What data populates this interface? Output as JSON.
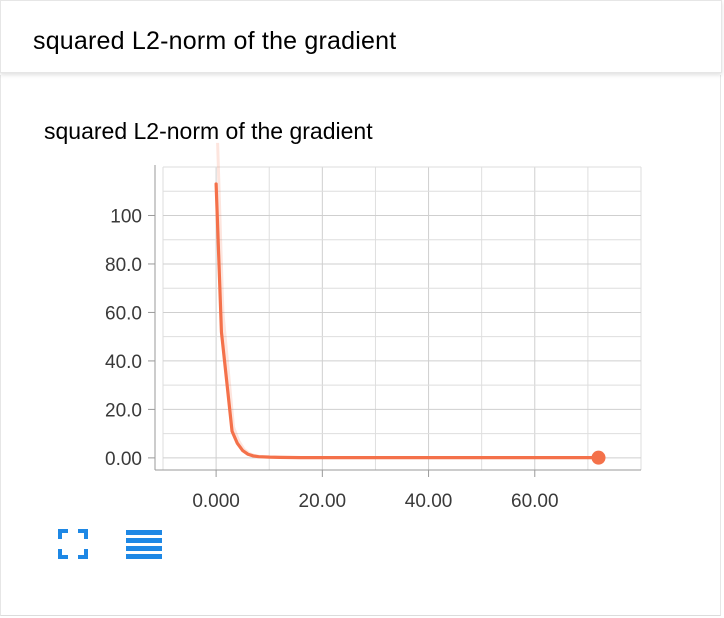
{
  "header": {
    "title": "squared L2-norm of the gradient"
  },
  "chart_data": {
    "type": "line",
    "title": "squared L2-norm of the gradient",
    "xlabel": "",
    "ylabel": "",
    "x_ticks": [
      "0.000",
      "20.00",
      "40.00",
      "60.00"
    ],
    "y_ticks": [
      "0.00",
      "20.0",
      "40.0",
      "60.0",
      "80.0",
      "100"
    ],
    "xlim": [
      -10,
      80
    ],
    "ylim": [
      -5,
      120
    ],
    "grid": true,
    "series": [
      {
        "name": "",
        "color": "#f4714a",
        "x": [
          0,
          1,
          3,
          4,
          5,
          6,
          7,
          8,
          10,
          12,
          16,
          20,
          30,
          40,
          50,
          60,
          72
        ],
        "values": [
          113,
          52,
          11,
          6,
          3,
          1.5,
          0.8,
          0.5,
          0.3,
          0.2,
          0.1,
          0.1,
          0.1,
          0.1,
          0.1,
          0.1,
          0.1
        ]
      }
    ],
    "raw_color": "#f4714a",
    "last_point": {
      "x": 72,
      "y": 0.1
    }
  },
  "toolbar": {
    "fullscreen_icon": "fullscreen-icon",
    "menu_icon": "menu-icon",
    "accent": "#1e88e5"
  }
}
